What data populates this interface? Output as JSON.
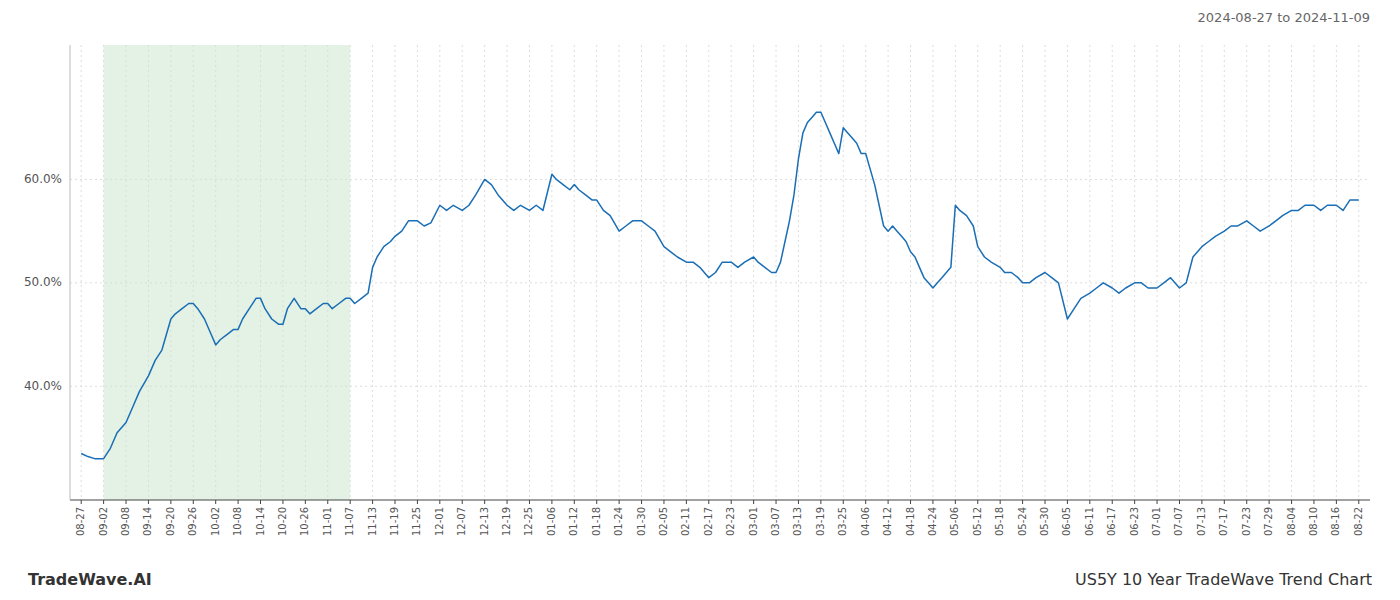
{
  "chart_data": {
    "type": "line",
    "title": "US5Y 10 Year TradeWave Trend Chart",
    "subtitle": "2024-08-27 to 2024-11-09",
    "annotations": [
      "TradeWave.AI"
    ],
    "color": "#1a6eb5",
    "grid": true,
    "xlim": [
      -0.5,
      57.5
    ],
    "xticks": [
      {
        "value": 0,
        "label": "08-27"
      },
      {
        "value": 1,
        "label": "09-02"
      },
      {
        "value": 2,
        "label": "09-08"
      },
      {
        "value": 3,
        "label": "09-14"
      },
      {
        "value": 4,
        "label": "09-20"
      },
      {
        "value": 5,
        "label": "09-26"
      },
      {
        "value": 6,
        "label": "10-02"
      },
      {
        "value": 7,
        "label": "10-08"
      },
      {
        "value": 8,
        "label": "10-14"
      },
      {
        "value": 9,
        "label": "10-20"
      },
      {
        "value": 10,
        "label": "10-26"
      },
      {
        "value": 11,
        "label": "11-01"
      },
      {
        "value": 12,
        "label": "11-07"
      },
      {
        "value": 13,
        "label": "11-13"
      },
      {
        "value": 14,
        "label": "11-19"
      },
      {
        "value": 15,
        "label": "11-25"
      },
      {
        "value": 16,
        "label": "12-01"
      },
      {
        "value": 17,
        "label": "12-07"
      },
      {
        "value": 18,
        "label": "12-13"
      },
      {
        "value": 19,
        "label": "12-19"
      },
      {
        "value": 20,
        "label": "12-25"
      },
      {
        "value": 21,
        "label": "01-06"
      },
      {
        "value": 22,
        "label": "01-12"
      },
      {
        "value": 23,
        "label": "01-18"
      },
      {
        "value": 24,
        "label": "01-24"
      },
      {
        "value": 25,
        "label": "01-30"
      },
      {
        "value": 26,
        "label": "02-05"
      },
      {
        "value": 27,
        "label": "02-11"
      },
      {
        "value": 28,
        "label": "02-17"
      },
      {
        "value": 29,
        "label": "02-23"
      },
      {
        "value": 30,
        "label": "03-01"
      },
      {
        "value": 31,
        "label": "03-07"
      },
      {
        "value": 32,
        "label": "03-13"
      },
      {
        "value": 33,
        "label": "03-19"
      },
      {
        "value": 34,
        "label": "03-25"
      },
      {
        "value": 35,
        "label": "04-06"
      },
      {
        "value": 36,
        "label": "04-12"
      },
      {
        "value": 37,
        "label": "04-18"
      },
      {
        "value": 38,
        "label": "04-24"
      },
      {
        "value": 39,
        "label": "05-06"
      },
      {
        "value": 40,
        "label": "05-12"
      },
      {
        "value": 41,
        "label": "05-18"
      },
      {
        "value": 42,
        "label": "05-24"
      },
      {
        "value": 43,
        "label": "05-30"
      },
      {
        "value": 44,
        "label": "06-05"
      },
      {
        "value": 45,
        "label": "06-11"
      },
      {
        "value": 46,
        "label": "06-17"
      },
      {
        "value": 47,
        "label": "06-23"
      },
      {
        "value": 48,
        "label": "07-01"
      },
      {
        "value": 49,
        "label": "07-07"
      },
      {
        "value": 50,
        "label": "07-13"
      },
      {
        "value": 51,
        "label": "07-17"
      },
      {
        "value": 52,
        "label": "07-23"
      },
      {
        "value": 53,
        "label": "07-29"
      },
      {
        "value": 54,
        "label": "08-04"
      },
      {
        "value": 55,
        "label": "08-10"
      },
      {
        "value": 56,
        "label": "08-16"
      },
      {
        "value": 57,
        "label": "08-22"
      }
    ],
    "ylim": [
      29,
      73
    ],
    "yticks": [
      {
        "value": 40.0,
        "label": "40.0%"
      },
      {
        "value": 50.0,
        "label": "50.0%"
      },
      {
        "value": 60.0,
        "label": "60.0%"
      }
    ],
    "shaded_region": {
      "from": 1,
      "to": 12,
      "color": "#c8e6c9"
    },
    "x": [
      0,
      0.3,
      0.6,
      1,
      1.3,
      1.6,
      2,
      2.3,
      2.6,
      3,
      3.3,
      3.6,
      4,
      4.2,
      4.5,
      4.8,
      5,
      5.2,
      5.5,
      5.8,
      6,
      6.2,
      6.5,
      6.8,
      7,
      7.2,
      7.5,
      7.8,
      8,
      8.2,
      8.5,
      8.8,
      9,
      9.2,
      9.5,
      9.8,
      10,
      10.2,
      10.5,
      10.8,
      11,
      11.2,
      11.5,
      11.8,
      12,
      12.2,
      12.5,
      12.8,
      13,
      13.2,
      13.5,
      13.8,
      14,
      14.3,
      14.6,
      15,
      15.3,
      15.6,
      16,
      16.3,
      16.6,
      17,
      17.3,
      17.6,
      18,
      18.3,
      18.6,
      19,
      19.3,
      19.6,
      20,
      20.3,
      20.6,
      21,
      21.2,
      21.5,
      21.8,
      22,
      22.2,
      22.5,
      22.8,
      23,
      23.3,
      23.6,
      24,
      24.3,
      24.6,
      25,
      25.3,
      25.6,
      26,
      26.3,
      26.6,
      27,
      27.3,
      27.6,
      28,
      28.3,
      28.6,
      29,
      29.3,
      29.6,
      30,
      30.2,
      30.5,
      30.8,
      31,
      31.2,
      31.4,
      31.6,
      31.8,
      32,
      32.2,
      32.4,
      32.6,
      32.8,
      33,
      33.2,
      33.4,
      33.6,
      33.8,
      34,
      34.2,
      34.4,
      34.6,
      34.8,
      35,
      35.2,
      35.4,
      35.6,
      35.8,
      36,
      36.2,
      36.4,
      36.6,
      36.8,
      37,
      37.2,
      37.4,
      37.6,
      37.8,
      38,
      38.2,
      38.4,
      38.6,
      38.8,
      39,
      39.2,
      39.5,
      39.8,
      40,
      40.3,
      40.6,
      41,
      41.2,
      41.5,
      41.8,
      42,
      42.3,
      42.6,
      43,
      43.3,
      43.6,
      44,
      44.3,
      44.6,
      45,
      45.3,
      45.6,
      46,
      46.3,
      46.6,
      47,
      47.3,
      47.6,
      48,
      48.3,
      48.6,
      49,
      49.3,
      49.6,
      50,
      50.3,
      50.6,
      51,
      51.3,
      51.6,
      52,
      52.3,
      52.6,
      53,
      53.3,
      53.6,
      54,
      54.3,
      54.6,
      55,
      55.3,
      55.6,
      56,
      56.3,
      56.6,
      57
    ],
    "values": [
      33.5,
      33.2,
      33.0,
      33.0,
      34.0,
      35.5,
      36.5,
      38.0,
      39.5,
      41.0,
      42.5,
      43.5,
      46.5,
      47.0,
      47.5,
      48.0,
      48.0,
      47.5,
      46.5,
      45.0,
      44.0,
      44.5,
      45.0,
      45.5,
      45.5,
      46.5,
      47.5,
      48.5,
      48.5,
      47.5,
      46.5,
      46.0,
      46.0,
      47.5,
      48.5,
      47.5,
      47.5,
      47.0,
      47.5,
      48.0,
      48.0,
      47.5,
      48.0,
      48.5,
      48.5,
      48.0,
      48.5,
      49.0,
      51.5,
      52.5,
      53.5,
      54.0,
      54.5,
      55.0,
      56.0,
      56.0,
      55.5,
      55.8,
      57.5,
      57.0,
      57.5,
      57.0,
      57.5,
      58.5,
      60.0,
      59.5,
      58.5,
      57.5,
      57.0,
      57.5,
      57.0,
      57.5,
      57.0,
      60.5,
      60.0,
      59.5,
      59.0,
      59.5,
      59.0,
      58.5,
      58.0,
      58.0,
      57.0,
      56.5,
      55.0,
      55.5,
      56.0,
      56.0,
      55.5,
      55.0,
      53.5,
      53.0,
      52.5,
      52.0,
      52.0,
      51.5,
      50.5,
      51.0,
      52.0,
      52.0,
      51.5,
      52.0,
      52.5,
      52.0,
      51.5,
      51.0,
      51.0,
      52.0,
      54.0,
      56.0,
      58.5,
      62.0,
      64.5,
      65.5,
      66.0,
      66.5,
      66.5,
      65.5,
      64.5,
      63.5,
      62.5,
      65.0,
      64.5,
      64.0,
      63.5,
      62.5,
      62.5,
      61.0,
      59.5,
      57.5,
      55.5,
      55.0,
      55.5,
      55.0,
      54.5,
      54.0,
      53.0,
      52.5,
      51.5,
      50.5,
      50.0,
      49.5,
      50.0,
      50.5,
      51.0,
      51.5,
      57.5,
      57.0,
      56.5,
      55.5,
      53.5,
      52.5,
      52.0,
      51.5,
      51.0,
      51.0,
      50.5,
      50.0,
      50.0,
      50.5,
      51.0,
      50.5,
      50.0,
      46.5,
      47.5,
      48.5,
      49.0,
      49.5,
      50.0,
      49.5,
      49.0,
      49.5,
      50.0,
      50.0,
      49.5,
      49.5,
      50.0,
      50.5,
      49.5,
      50.0,
      52.5,
      53.5,
      54.0,
      54.5,
      55.0,
      55.5,
      55.5,
      56.0,
      55.5,
      55.0,
      55.5,
      56.0,
      56.5,
      57.0,
      57.0,
      57.5,
      57.5,
      57.0,
      57.5,
      57.5,
      57.0,
      58.0,
      58.0
    ]
  }
}
